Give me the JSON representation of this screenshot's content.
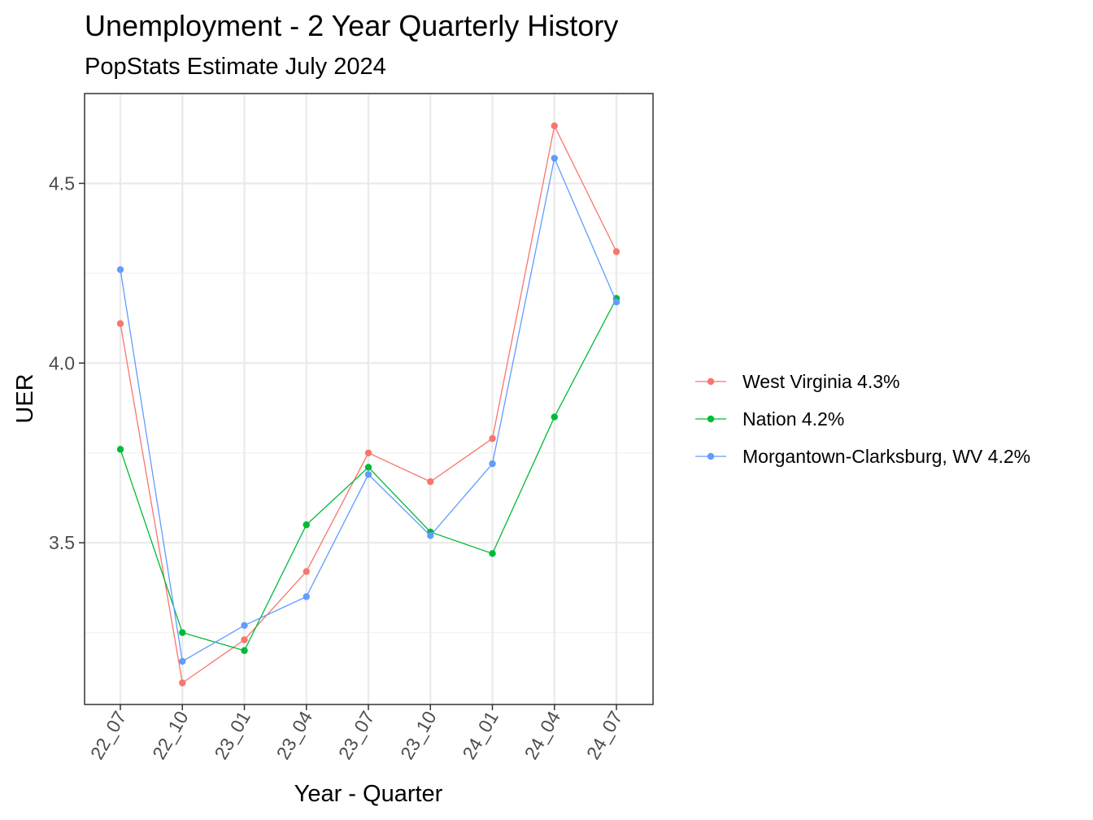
{
  "chart_data": {
    "type": "line",
    "title": "Unemployment - 2 Year Quarterly History",
    "subtitle": "PopStats Estimate July 2024",
    "xlabel": "Year - Quarter",
    "ylabel": "UER",
    "categories": [
      "22_07",
      "22_10",
      "23_01",
      "23_04",
      "23_07",
      "23_10",
      "24_01",
      "24_04",
      "24_07"
    ],
    "ylim": [
      3.05,
      4.75
    ],
    "yticks": [
      3.5,
      4.0,
      4.5
    ],
    "ytick_labels": [
      "3.5",
      "4.0",
      "4.5"
    ],
    "grid": true,
    "legend_position": "right",
    "series": [
      {
        "name": "West Virginia 4.3%",
        "color": "#F8766D",
        "values": [
          4.11,
          3.11,
          3.23,
          3.42,
          3.75,
          3.67,
          3.79,
          4.66,
          4.31
        ]
      },
      {
        "name": "Nation 4.2%",
        "color": "#00BA38",
        "values": [
          3.76,
          3.25,
          3.2,
          3.55,
          3.71,
          3.53,
          3.47,
          3.85,
          4.18
        ]
      },
      {
        "name": "Morgantown-Clarksburg, WV 4.2%",
        "color": "#619CFF",
        "values": [
          4.26,
          3.17,
          3.27,
          3.35,
          3.69,
          3.52,
          3.72,
          4.57,
          4.17
        ]
      }
    ]
  }
}
